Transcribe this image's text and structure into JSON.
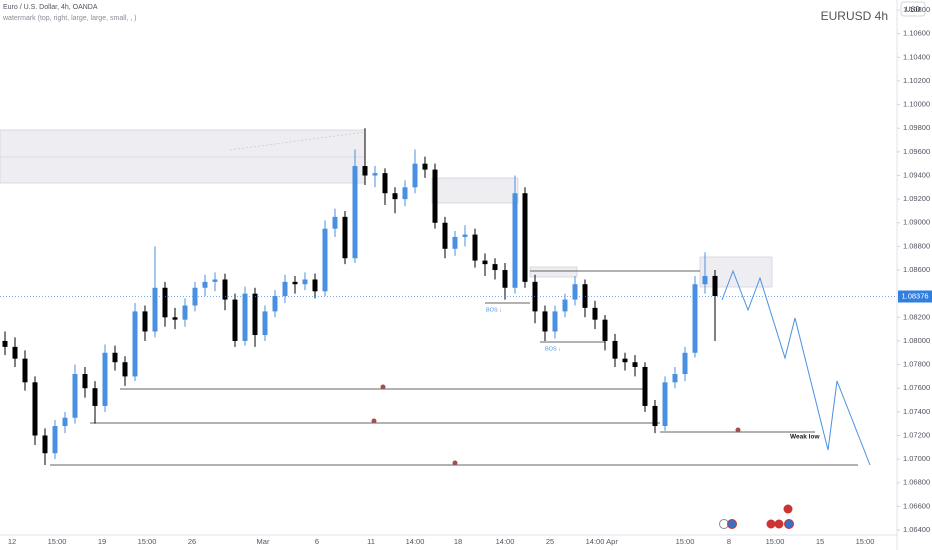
{
  "header": {
    "symbol_line": "Euro / U.S. Dollar, 4h, OANDA",
    "watermark_line": "watermark (top, right, large, large, small, , )",
    "watermark": "EURUSD 4h",
    "currency": "USD"
  },
  "annotations": {
    "bos_1": "BOS ↓",
    "bos_2": "BOS ↓",
    "weak_low": "Weak low"
  },
  "chart_data": {
    "type": "candlestick",
    "ylim": [
      1.06341,
      1.10885
    ],
    "yticks": [
      {
        "value": 1.108,
        "label": "1.10800"
      },
      {
        "value": 1.106,
        "label": "1.10600"
      },
      {
        "value": 1.104,
        "label": "1.10400"
      },
      {
        "value": 1.102,
        "label": "1.10200"
      },
      {
        "value": 1.1,
        "label": "1.10000"
      },
      {
        "value": 1.098,
        "label": "1.09800"
      },
      {
        "value": 1.096,
        "label": "1.09600"
      },
      {
        "value": 1.094,
        "label": "1.09400"
      },
      {
        "value": 1.092,
        "label": "1.09200"
      },
      {
        "value": 1.09,
        "label": "1.09000"
      },
      {
        "value": 1.088,
        "label": "1.08800"
      },
      {
        "value": 1.086,
        "label": "1.08600"
      },
      {
        "value": 1.082,
        "label": "1.08200"
      },
      {
        "value": 1.08,
        "label": "1.08000"
      },
      {
        "value": 1.078,
        "label": "1.07800"
      },
      {
        "value": 1.076,
        "label": "1.07600"
      },
      {
        "value": 1.074,
        "label": "1.07400"
      },
      {
        "value": 1.072,
        "label": "1.07200"
      },
      {
        "value": 1.07,
        "label": "1.07000"
      },
      {
        "value": 1.068,
        "label": "1.06800"
      },
      {
        "value": 1.066,
        "label": "1.06600"
      },
      {
        "value": 1.064,
        "label": "1.06400"
      }
    ],
    "xticks": [
      "12",
      "15:00",
      "19",
      "15:00",
      "26",
      "Mar",
      "6",
      "11",
      "14:00",
      "18",
      "14:00",
      "25",
      "14:00",
      "Apr",
      "15:00",
      "8",
      "15:00",
      "15",
      "15:00"
    ],
    "last_price": 1.08376,
    "up_color": "#4a90e2",
    "down_color": "#000000",
    "ohlc": [
      [
        1.08,
        1.0808,
        1.0788,
        1.0795
      ],
      [
        1.0795,
        1.0803,
        1.0778,
        1.0785
      ],
      [
        1.0785,
        1.0792,
        1.0758,
        1.0765
      ],
      [
        1.0765,
        1.077,
        1.0712,
        1.072
      ],
      [
        1.072,
        1.0726,
        1.0695,
        1.0705
      ],
      [
        1.0705,
        1.0733,
        1.07,
        1.0728
      ],
      [
        1.0728,
        1.074,
        1.0722,
        1.0735
      ],
      [
        1.0735,
        1.078,
        1.073,
        1.0772
      ],
      [
        1.0772,
        1.0778,
        1.0752,
        1.076
      ],
      [
        1.076,
        1.0766,
        1.073,
        1.0745
      ],
      [
        1.0745,
        1.0797,
        1.074,
        1.079
      ],
      [
        1.079,
        1.0796,
        1.0775,
        1.0782
      ],
      [
        1.0782,
        1.0787,
        1.0762,
        1.077
      ],
      [
        1.077,
        1.0832,
        1.0766,
        1.0825
      ],
      [
        1.0825,
        1.083,
        1.08,
        1.0808
      ],
      [
        1.0808,
        1.088,
        1.0803,
        1.0845
      ],
      [
        1.0845,
        1.085,
        1.0812,
        1.082
      ],
      [
        1.082,
        1.0828,
        1.081,
        1.0818
      ],
      [
        1.0818,
        1.0836,
        1.0812,
        1.083
      ],
      [
        1.083,
        1.085,
        1.0825,
        1.0845
      ],
      [
        1.0845,
        1.0856,
        1.0838,
        1.085
      ],
      [
        1.085,
        1.0858,
        1.0842,
        1.0852
      ],
      [
        1.0852,
        1.0857,
        1.0826,
        1.0835
      ],
      [
        1.0835,
        1.084,
        1.0795,
        1.08
      ],
      [
        1.08,
        1.0846,
        1.0796,
        1.084
      ],
      [
        1.084,
        1.0845,
        1.0795,
        1.0805
      ],
      [
        1.0805,
        1.083,
        1.08,
        1.0825
      ],
      [
        1.0825,
        1.0843,
        1.082,
        1.0838
      ],
      [
        1.0838,
        1.0856,
        1.0832,
        1.085
      ],
      [
        1.085,
        1.0855,
        1.084,
        1.0848
      ],
      [
        1.0848,
        1.0858,
        1.0843,
        1.0852
      ],
      [
        1.0852,
        1.0857,
        1.0836,
        1.0842
      ],
      [
        1.0842,
        1.0902,
        1.0838,
        1.0895
      ],
      [
        1.0895,
        1.0912,
        1.0888,
        1.0905
      ],
      [
        1.0905,
        1.091,
        1.0865,
        1.087
      ],
      [
        1.087,
        1.0962,
        1.0866,
        1.0948
      ],
      [
        1.0948,
        1.098,
        1.0932,
        1.094
      ],
      [
        1.094,
        1.0948,
        1.093,
        1.0942
      ],
      [
        1.0942,
        1.0946,
        1.0915,
        1.0925
      ],
      [
        1.0925,
        1.093,
        1.0908,
        1.092
      ],
      [
        1.092,
        1.0936,
        1.0914,
        1.093
      ],
      [
        1.093,
        1.0962,
        1.0925,
        1.095
      ],
      [
        1.095,
        1.0956,
        1.0938,
        1.0945
      ],
      [
        1.0945,
        1.095,
        1.0895,
        1.09
      ],
      [
        1.09,
        1.0905,
        1.087,
        1.0878
      ],
      [
        1.0878,
        1.0893,
        1.0872,
        1.0888
      ],
      [
        1.0888,
        1.0898,
        1.088,
        1.089
      ],
      [
        1.089,
        1.0895,
        1.0862,
        1.0868
      ],
      [
        1.0868,
        1.0874,
        1.0855,
        1.0865
      ],
      [
        1.0865,
        1.087,
        1.0852,
        1.086
      ],
      [
        1.086,
        1.0866,
        1.0835,
        1.0845
      ],
      [
        1.0845,
        1.094,
        1.084,
        1.0925
      ],
      [
        1.0925,
        1.093,
        1.0845,
        1.085
      ],
      [
        1.085,
        1.0856,
        1.0815,
        1.0825
      ],
      [
        1.0825,
        1.083,
        1.08,
        1.0808
      ],
      [
        1.0808,
        1.083,
        1.0802,
        1.0825
      ],
      [
        1.0825,
        1.084,
        1.082,
        1.0835
      ],
      [
        1.0835,
        1.0855,
        1.083,
        1.0848
      ],
      [
        1.0848,
        1.0852,
        1.082,
        1.0828
      ],
      [
        1.0828,
        1.0834,
        1.081,
        1.0818
      ],
      [
        1.0818,
        1.0822,
        1.0792,
        1.08
      ],
      [
        1.08,
        1.0806,
        1.0778,
        1.0785
      ],
      [
        1.0785,
        1.079,
        1.0775,
        1.0782
      ],
      [
        1.0782,
        1.0788,
        1.077,
        1.0778
      ],
      [
        1.0778,
        1.0782,
        1.074,
        1.0745
      ],
      [
        1.0745,
        1.075,
        1.0722,
        1.0728
      ],
      [
        1.0728,
        1.077,
        1.0724,
        1.0765
      ],
      [
        1.0765,
        1.0778,
        1.076,
        1.0772
      ],
      [
        1.0772,
        1.0795,
        1.0766,
        1.079
      ],
      [
        1.079,
        1.0855,
        1.0786,
        1.0848
      ],
      [
        1.0848,
        1.0875,
        1.084,
        1.0855
      ],
      [
        1.0855,
        1.086,
        1.08,
        1.0838
      ]
    ]
  }
}
